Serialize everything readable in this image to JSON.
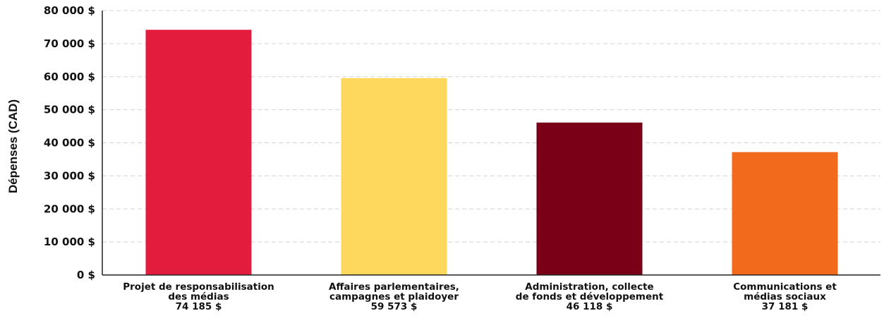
{
  "chart_data": {
    "type": "bar",
    "title": "",
    "xlabel": "",
    "ylabel": "Dépenses (CAD)",
    "ylim": [
      0,
      80000
    ],
    "grid": true,
    "y_ticks": [
      {
        "value": 0,
        "label": "0 $"
      },
      {
        "value": 10000,
        "label": "10 000 $"
      },
      {
        "value": 20000,
        "label": "20 000 $"
      },
      {
        "value": 30000,
        "label": "30 000 $"
      },
      {
        "value": 40000,
        "label": "40 000 $"
      },
      {
        "value": 50000,
        "label": "50 000 $"
      },
      {
        "value": 60000,
        "label": "60 000 $"
      },
      {
        "value": 70000,
        "label": "70 000 $"
      },
      {
        "value": 80000,
        "label": "80 000 $"
      }
    ],
    "bars": [
      {
        "category_lines": [
          "Projet de responsabilisation",
          "des médias"
        ],
        "value": 74185,
        "value_label": "74 185 $",
        "color": "#e31b3d"
      },
      {
        "category_lines": [
          "Affaires parlementaires,",
          "campagnes et plaidoyer"
        ],
        "value": 59573,
        "value_label": "59 573 $",
        "color": "#fdd85d"
      },
      {
        "category_lines": [
          "Administration, collecte",
          "de fonds et développement"
        ],
        "value": 46118,
        "value_label": "46 118 $",
        "color": "#7a0018"
      },
      {
        "category_lines": [
          "Communications et",
          "médias sociaux"
        ],
        "value": 37181,
        "value_label": "37 181 $",
        "color": "#f26a1b"
      }
    ]
  }
}
